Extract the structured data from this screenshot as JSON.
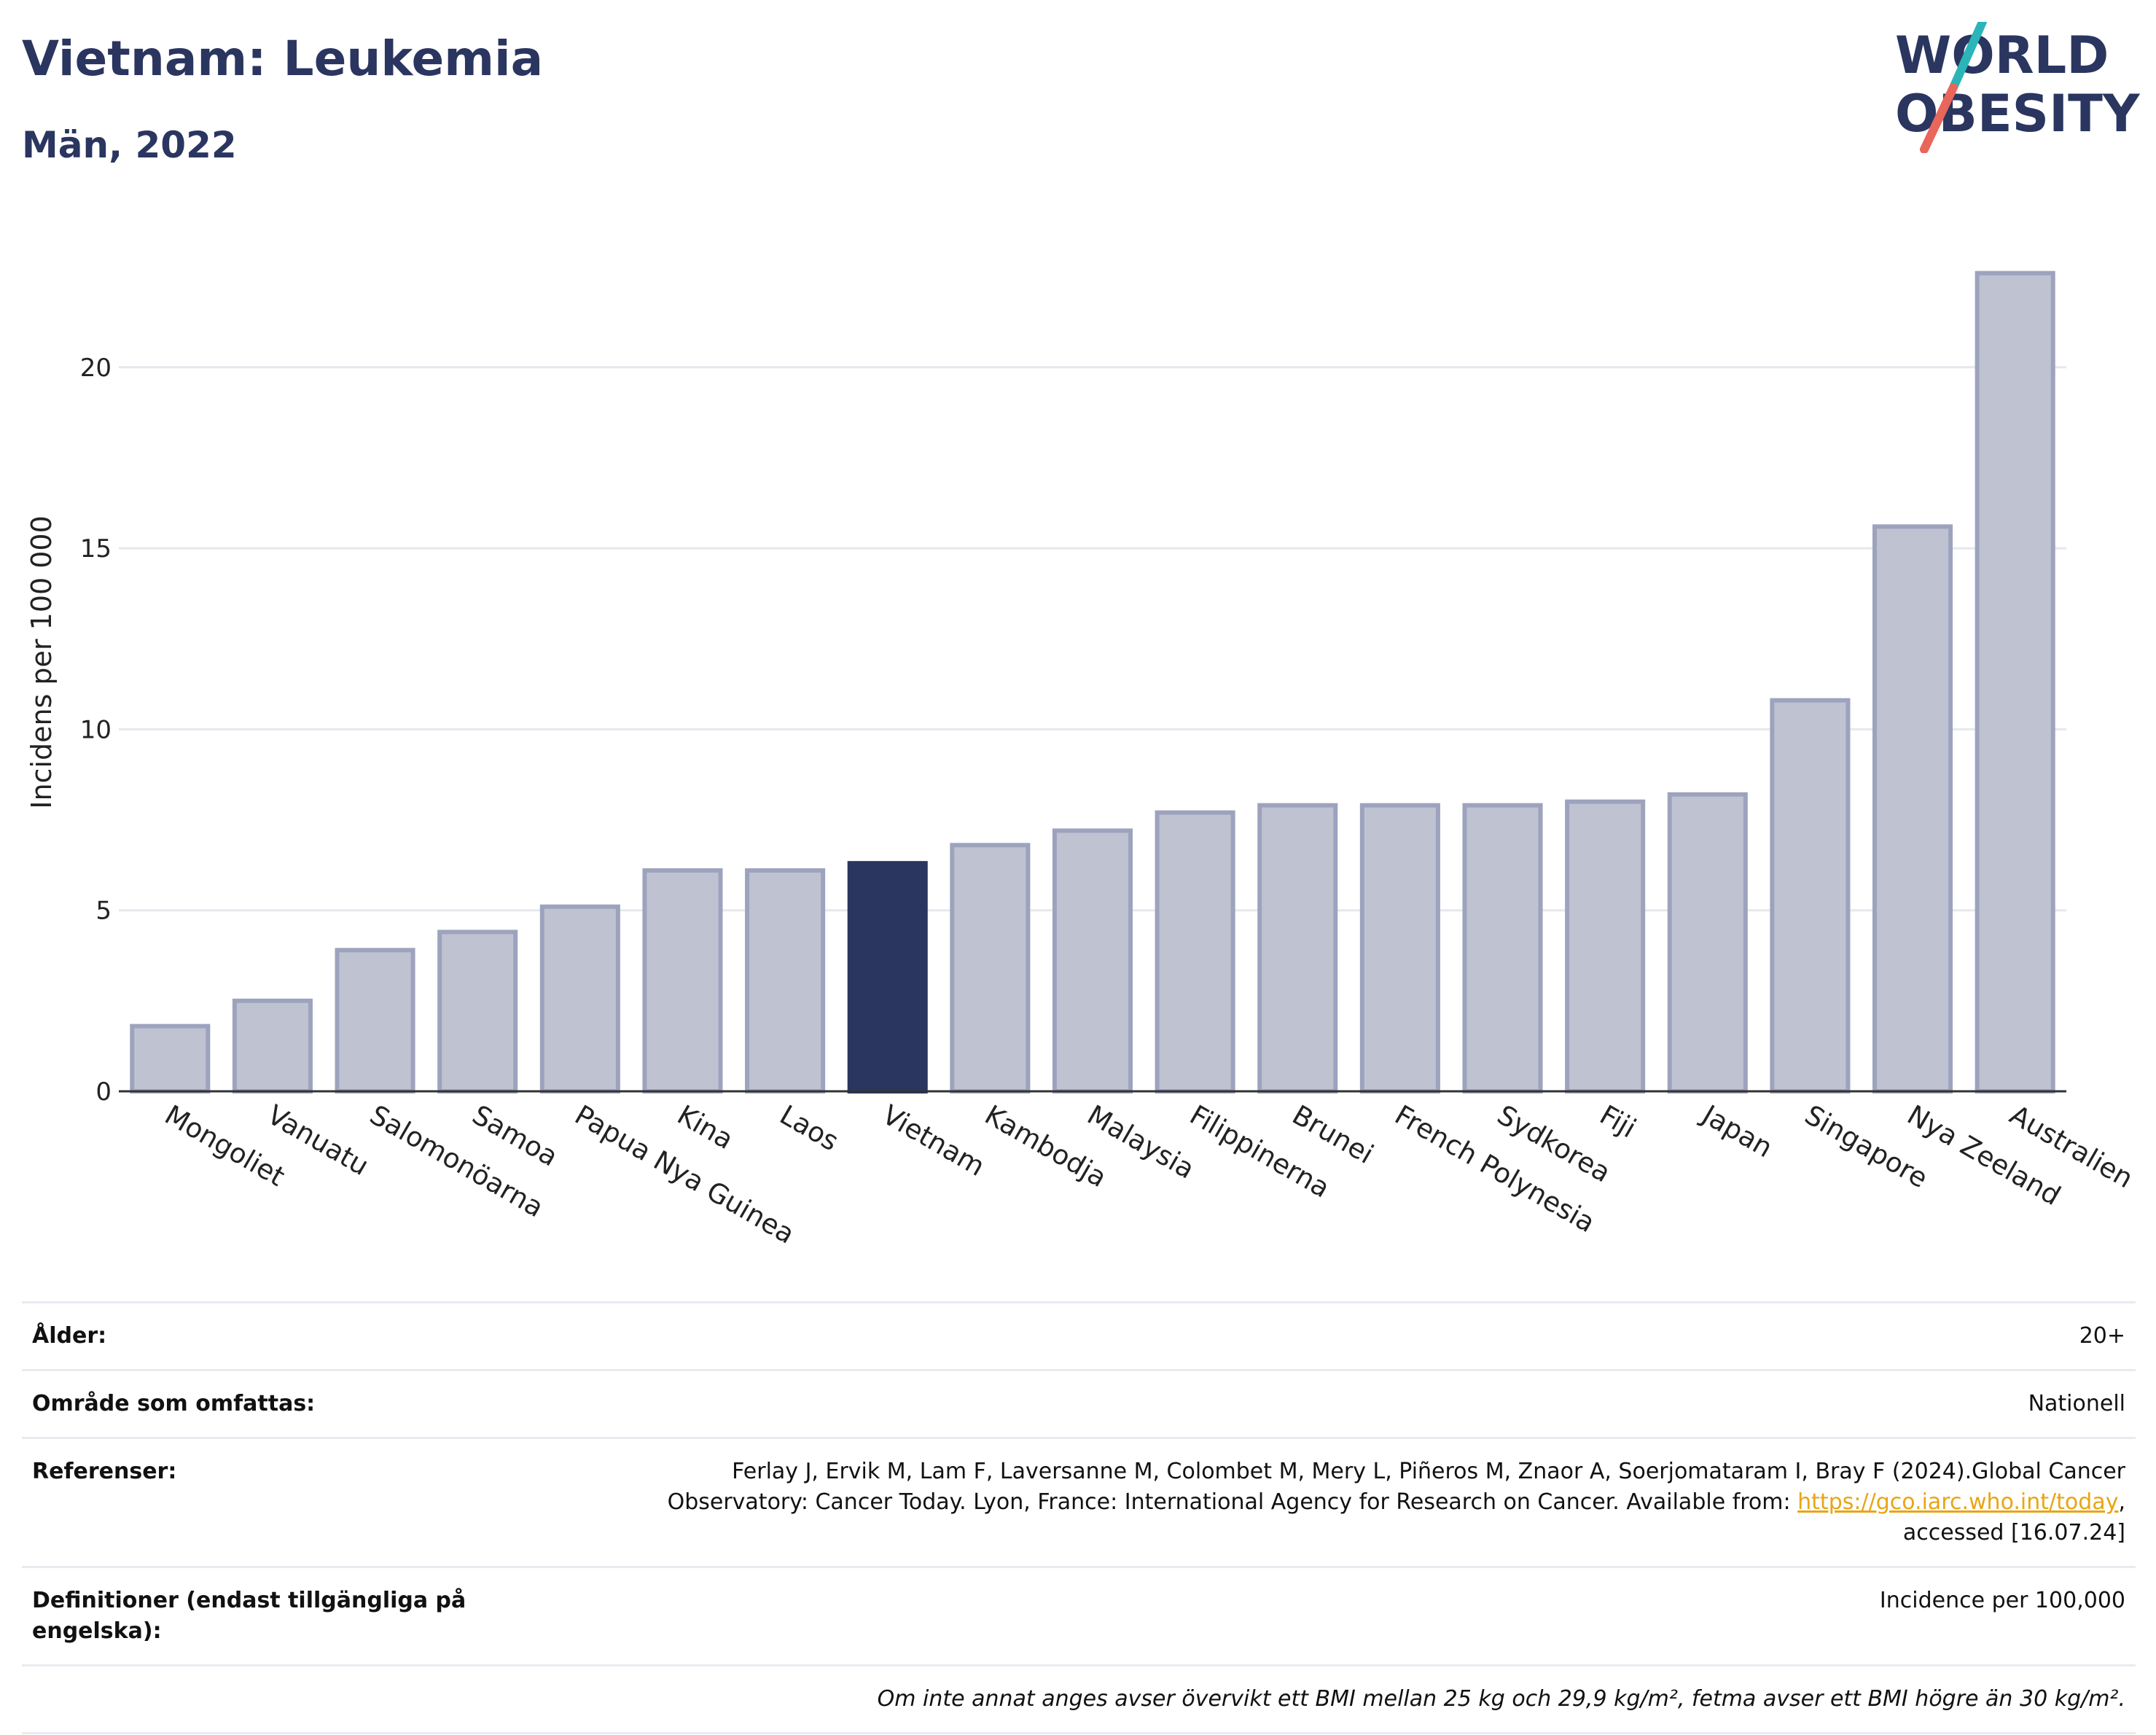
{
  "header": {
    "title": "Vietnam: Leukemia",
    "subtitle": "Män, 2022"
  },
  "logo": {
    "line1": "WORLD",
    "line2": "OBESITY"
  },
  "colors": {
    "highlight_bar": "#2a3560",
    "other_bar_fill": "#bfc3d1",
    "other_bar_stroke": "#9da3bd",
    "logo_slash_teal": "#2bb5b8",
    "logo_slash_red": "#e8665a",
    "link": "#e8a515"
  },
  "chart_data": {
    "type": "bar",
    "ylabel": "Incidens per 100 000",
    "xlabel": "",
    "ylim": [
      0,
      23.5
    ],
    "yticks": [
      0,
      5,
      10,
      15,
      20
    ],
    "grid": true,
    "highlight": "Vietnam",
    "categories": [
      "Mongoliet",
      "Vanuatu",
      "Salomonöarna",
      "Samoa",
      "Papua Nya Guinea",
      "Kina",
      "Laos",
      "Vietnam",
      "Kambodja",
      "Malaysia",
      "Filippinerna",
      "Brunei",
      "French Polynesia",
      "Sydkorea",
      "Fiji",
      "Japan",
      "Singapore",
      "Nya Zeeland",
      "Australien"
    ],
    "values": [
      1.8,
      2.5,
      3.9,
      4.4,
      5.1,
      6.1,
      6.1,
      6.3,
      6.8,
      7.2,
      7.7,
      7.9,
      7.9,
      7.9,
      8.0,
      8.2,
      10.8,
      15.6,
      22.6
    ]
  },
  "info": {
    "age_label": "Ålder:",
    "age_value": "20+",
    "area_label": "Område som omfattas:",
    "area_value": "Nationell",
    "ref_label": "Referenser:",
    "ref_line1": "Ferlay J, Ervik M, Lam F, Laversanne M, Colombet M, Mery L, Piñeros M, Znaor A, Soerjomataram I, Bray F (2024).Global Cancer",
    "ref_line2": "Observatory: Cancer Today. Lyon, France: International Agency for Research on Cancer. Available from: ",
    "ref_link": "https://gco.iarc.who.int/today",
    "ref_line2_end": ",",
    "ref_line3": "accessed [16.07.24]",
    "def_label": "Definitioner (endast tillgängliga på engelska):",
    "def_value": "Incidence per 100,000",
    "note": "Om inte annat anges avser övervikt ett BMI mellan 25 kg och 29,9 kg/m², fetma avser ett BMI högre än 30 kg/m²."
  }
}
